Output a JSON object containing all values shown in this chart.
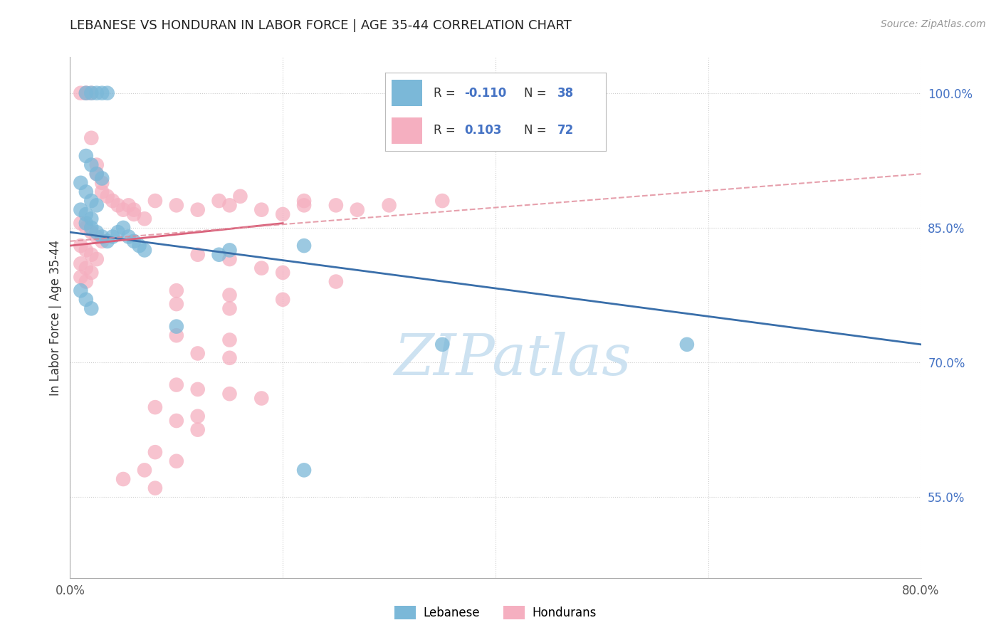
{
  "title": "LEBANESE VS HONDURAN IN LABOR FORCE | AGE 35-44 CORRELATION CHART",
  "source": "Source: ZipAtlas.com",
  "ylabel": "In Labor Force | Age 35-44",
  "xlim": [
    0.0,
    80.0
  ],
  "ylim": [
    46.0,
    104.0
  ],
  "ytick_positions": [
    55.0,
    70.0,
    85.0,
    100.0
  ],
  "ytick_labels": [
    "55.0%",
    "70.0%",
    "85.0%",
    "100.0%"
  ],
  "xtick_positions": [
    0.0,
    20.0,
    40.0,
    60.0,
    80.0
  ],
  "xtick_labels": [
    "0.0%",
    "",
    "",
    "",
    "80.0%"
  ],
  "blue_color": "#7bb8d8",
  "pink_color": "#f5afc0",
  "blue_line_color": "#3a6faa",
  "pink_line_color": "#d9607a",
  "pink_dash_color": "#e08898",
  "ytick_color": "#4472c4",
  "watermark_color": "#c8dff0",
  "blue_scatter_x": [
    1.5,
    2.0,
    2.5,
    3.0,
    3.5,
    1.5,
    2.0,
    2.5,
    3.0,
    1.0,
    1.5,
    2.0,
    2.5,
    1.0,
    1.5,
    2.0,
    1.5,
    2.0,
    2.5,
    3.0,
    3.5,
    4.0,
    4.5,
    5.0,
    5.5,
    6.0,
    6.5,
    7.0,
    1.0,
    1.5,
    2.0,
    14.0,
    15.0,
    22.0,
    35.0,
    10.0,
    22.0,
    58.0
  ],
  "blue_scatter_y": [
    100.0,
    100.0,
    100.0,
    100.0,
    100.0,
    93.0,
    92.0,
    91.0,
    90.5,
    90.0,
    89.0,
    88.0,
    87.5,
    87.0,
    86.5,
    86.0,
    85.5,
    85.0,
    84.5,
    84.0,
    83.5,
    84.0,
    84.5,
    85.0,
    84.0,
    83.5,
    83.0,
    82.5,
    78.0,
    77.0,
    76.0,
    82.0,
    82.5,
    83.0,
    72.0,
    74.0,
    58.0,
    72.0
  ],
  "pink_scatter_x": [
    1.0,
    1.5,
    1.5,
    2.0,
    2.0,
    2.5,
    2.5,
    3.0,
    3.0,
    3.5,
    4.0,
    4.5,
    5.0,
    5.5,
    6.0,
    6.0,
    7.0,
    1.0,
    1.5,
    2.0,
    2.5,
    3.0,
    1.0,
    1.5,
    2.0,
    2.5,
    1.0,
    1.5,
    2.0,
    1.0,
    1.5,
    8.0,
    10.0,
    12.0,
    14.0,
    15.0,
    16.0,
    18.0,
    20.0,
    22.0,
    22.0,
    25.0,
    27.0,
    30.0,
    35.0,
    12.0,
    15.0,
    18.0,
    20.0,
    25.0,
    10.0,
    15.0,
    20.0,
    10.0,
    15.0,
    10.0,
    15.0,
    12.0,
    15.0,
    10.0,
    12.0,
    15.0,
    18.0,
    8.0,
    12.0,
    10.0,
    12.0,
    8.0,
    10.0,
    7.0,
    5.0,
    8.0
  ],
  "pink_scatter_y": [
    100.0,
    100.0,
    100.0,
    100.0,
    95.0,
    92.0,
    91.0,
    90.0,
    89.0,
    88.5,
    88.0,
    87.5,
    87.0,
    87.5,
    87.0,
    86.5,
    86.0,
    85.5,
    85.0,
    84.5,
    84.0,
    83.5,
    83.0,
    82.5,
    82.0,
    81.5,
    81.0,
    80.5,
    80.0,
    79.5,
    79.0,
    88.0,
    87.5,
    87.0,
    88.0,
    87.5,
    88.5,
    87.0,
    86.5,
    87.5,
    88.0,
    87.5,
    87.0,
    87.5,
    88.0,
    82.0,
    81.5,
    80.5,
    80.0,
    79.0,
    78.0,
    77.5,
    77.0,
    76.5,
    76.0,
    73.0,
    72.5,
    71.0,
    70.5,
    67.5,
    67.0,
    66.5,
    66.0,
    65.0,
    64.0,
    63.5,
    62.5,
    60.0,
    59.0,
    58.0,
    57.0,
    56.0
  ],
  "blue_line_x0": 0.0,
  "blue_line_x1": 80.0,
  "blue_line_y0": 84.5,
  "blue_line_y1": 72.0,
  "pink_solid_x0": 0.0,
  "pink_solid_x1": 20.0,
  "pink_solid_y0": 83.0,
  "pink_solid_y1": 85.5,
  "pink_dash_x0": 0.0,
  "pink_dash_x1": 80.0,
  "pink_dash_y0": 83.5,
  "pink_dash_y1": 91.0
}
